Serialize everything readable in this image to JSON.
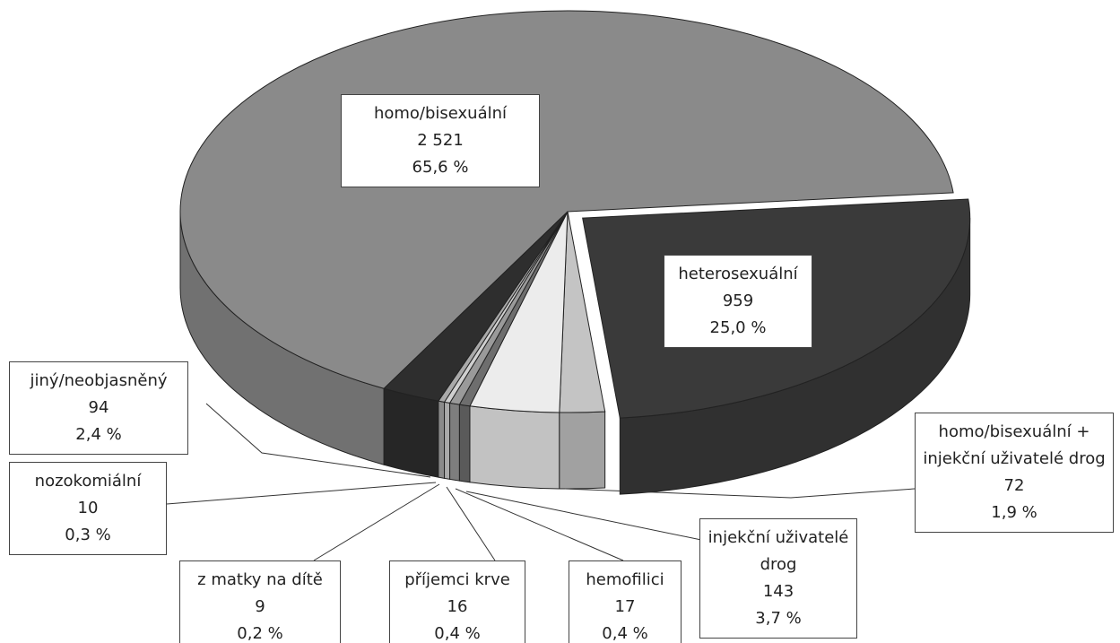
{
  "chart_data": {
    "type": "pie",
    "categories": [
      "homo/bisexuální",
      "heterosexuální",
      "homo/bisexuální + injekční uživatelé drog",
      "injekční uživatelé drog",
      "hemofilici",
      "příjemci krve",
      "z matky na dítě",
      "nozokomiální",
      "jiný/neobjasněný"
    ],
    "values": [
      2521,
      959,
      72,
      143,
      17,
      16,
      9,
      10,
      94
    ],
    "value_labels": [
      "2 521",
      "959",
      "72",
      "143",
      "17",
      "16",
      "9",
      "10",
      "94"
    ],
    "percents": [
      65.6,
      25.0,
      1.9,
      3.7,
      0.4,
      0.4,
      0.2,
      0.3,
      2.4
    ],
    "percent_labels": [
      "65,6 %",
      "25,0 %",
      "1,9 %",
      "3,7 %",
      "0,4 %",
      "0,4 %",
      "0,2 %",
      "0,3 %",
      "2,4 %"
    ],
    "colors": [
      "#8a8a8a",
      "#3a3a3a",
      "#c4c4c4",
      "#ececec",
      "#6e6e6e",
      "#9a9a9a",
      "#d0d0d0",
      "#aaaaaa",
      "#2e2e2e"
    ],
    "explode": [
      0,
      0.05,
      0,
      0,
      0,
      0,
      0,
      0,
      0
    ]
  }
}
